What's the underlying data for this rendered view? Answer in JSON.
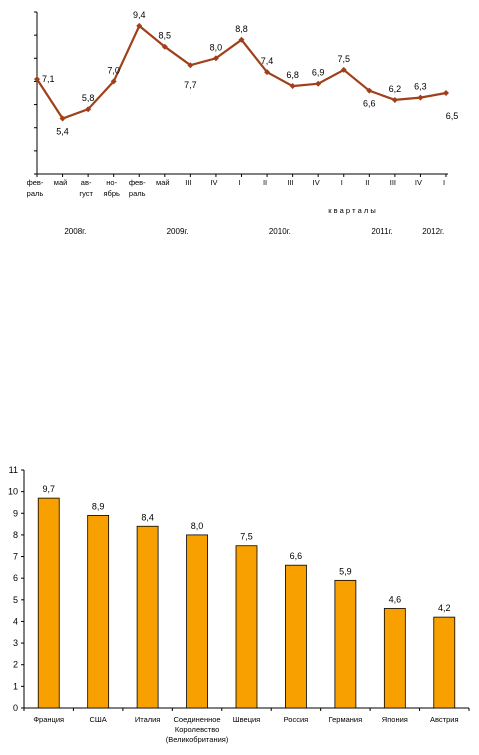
{
  "chart_data": [
    {
      "type": "line",
      "color": "#A0401A",
      "x_labels": [
        [
          "фев-",
          "раль"
        ],
        [
          "май"
        ],
        [
          "ав-",
          "густ"
        ],
        [
          "но-",
          "ябрь"
        ],
        [
          "фев-",
          "раль"
        ],
        [
          "май"
        ],
        [
          "III"
        ],
        [
          "IV"
        ],
        [
          "I"
        ],
        [
          "II"
        ],
        [
          "III"
        ],
        [
          "IV"
        ],
        [
          "I"
        ],
        [
          "II"
        ],
        [
          "III"
        ],
        [
          "IV"
        ],
        [
          "I"
        ]
      ],
      "values": [
        7.1,
        5.4,
        5.8,
        7.0,
        9.4,
        8.5,
        7.7,
        8.0,
        8.8,
        7.4,
        6.8,
        6.9,
        7.5,
        6.6,
        6.2,
        6.3,
        6.5
      ],
      "data_labels": [
        "7,1",
        "5,4",
        "5,8",
        "7,0",
        "9,4",
        "8,5",
        "7,7",
        "8,0",
        "8,8",
        "7,4",
        "6,8",
        "6,9",
        "7,5",
        "6,6",
        "6,2",
        "6,3",
        "6,5"
      ],
      "quarter_caption": "к в а р т а л ы",
      "years": [
        {
          "label": "2008г.",
          "at_index": 1.5
        },
        {
          "label": "2009г.",
          "at_index": 5.5
        },
        {
          "label": "2010г.",
          "at_index": 9.5
        },
        {
          "label": "2011г.",
          "at_index": 13.5
        },
        {
          "label": "2012г.",
          "at_index": 15.5
        }
      ],
      "ylim": [
        3,
        10
      ],
      "grid": false
    },
    {
      "type": "bar",
      "color": "#F7A000",
      "categories": [
        [
          "Франция"
        ],
        [
          "США"
        ],
        [
          "Италия"
        ],
        [
          "Соединенное",
          "Королевство",
          "(Великобритания)"
        ],
        [
          "Швеция"
        ],
        [
          "Россия"
        ],
        [
          "Германия"
        ],
        [
          "Япония"
        ],
        [
          "Австрия"
        ]
      ],
      "values": [
        9.7,
        8.9,
        8.4,
        8.0,
        7.5,
        6.6,
        5.9,
        4.6,
        4.2
      ],
      "data_labels": [
        "9,7",
        "8,9",
        "8,4",
        "8,0",
        "7,5",
        "6,6",
        "5,9",
        "4,6",
        "4,2"
      ],
      "y_ticks": [
        "0",
        "1",
        "2",
        "3",
        "4",
        "5",
        "6",
        "7",
        "8",
        "9",
        "10",
        "11"
      ],
      "ylim": [
        0,
        11
      ],
      "grid": false
    }
  ]
}
